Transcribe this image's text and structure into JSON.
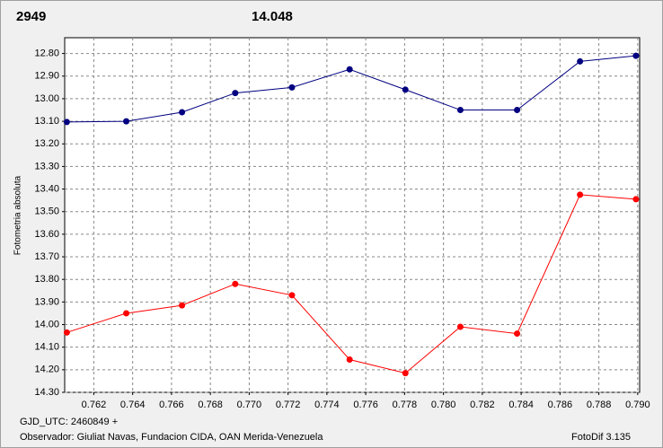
{
  "chart_data": {
    "type": "line",
    "annotations": [
      {
        "text": "2949",
        "color": "#e00000"
      },
      {
        "text": "14.048",
        "color": "#1a237e"
      }
    ],
    "y_label": "Fotometria absoluta",
    "footer": [
      "GJD_UTC: 2460849 +",
      "Observador: Giuliat Navas, Fundacion CIDA, OAN  Merida-Venezuela",
      "FotoDif 3.135"
    ],
    "x": [
      0.76061,
      0.76367,
      0.76654,
      0.76928,
      0.7722,
      0.77517,
      0.77804,
      0.78087,
      0.78379,
      0.78703,
      0.78991
    ],
    "series": [
      {
        "color": "#000080",
        "values": [
          13.103,
          13.1,
          13.06,
          12.975,
          12.95,
          12.87,
          12.96,
          13.05,
          13.05,
          12.835,
          12.81
        ]
      },
      {
        "color": "#ff0000",
        "values": [
          14.035,
          13.95,
          13.915,
          13.82,
          13.87,
          14.155,
          14.215,
          14.01,
          14.04,
          13.425,
          13.445
        ]
      }
    ],
    "xlim": [
      0.7605,
      0.7901
    ],
    "ylim": [
      14.3,
      12.73
    ],
    "xticks": [
      0.762,
      0.764,
      0.766,
      0.768,
      {
        "value": 0.77,
        "label": "0.770"
      },
      0.772,
      0.774,
      0.776,
      0.778,
      {
        "value": 0.78,
        "label": "0.780"
      },
      0.782,
      0.784,
      0.786,
      0.788,
      {
        "value": 0.79,
        "label": "0.790"
      }
    ],
    "yticks": [
      {
        "value": 12.8,
        "label": "12.80"
      },
      {
        "value": 12.9,
        "label": "12.90"
      },
      {
        "value": 13.0,
        "label": "13.00"
      },
      {
        "value": 13.1,
        "label": "13.10"
      },
      {
        "value": 13.2,
        "label": "13.20"
      },
      {
        "value": 13.3,
        "label": "13.30"
      },
      {
        "value": 13.4,
        "label": "13.40"
      },
      {
        "value": 13.5,
        "label": "13.50"
      },
      {
        "value": 13.6,
        "label": "13.60"
      },
      {
        "value": 13.7,
        "label": "13.70"
      },
      {
        "value": 13.8,
        "label": "13.80"
      },
      {
        "value": 13.9,
        "label": "13.90"
      },
      {
        "value": 14.0,
        "label": "14.00"
      },
      {
        "value": 14.1,
        "label": "14.10"
      },
      {
        "value": 14.2,
        "label": "14.20"
      },
      {
        "value": 14.3,
        "label": "14.30"
      }
    ],
    "grid": true
  }
}
